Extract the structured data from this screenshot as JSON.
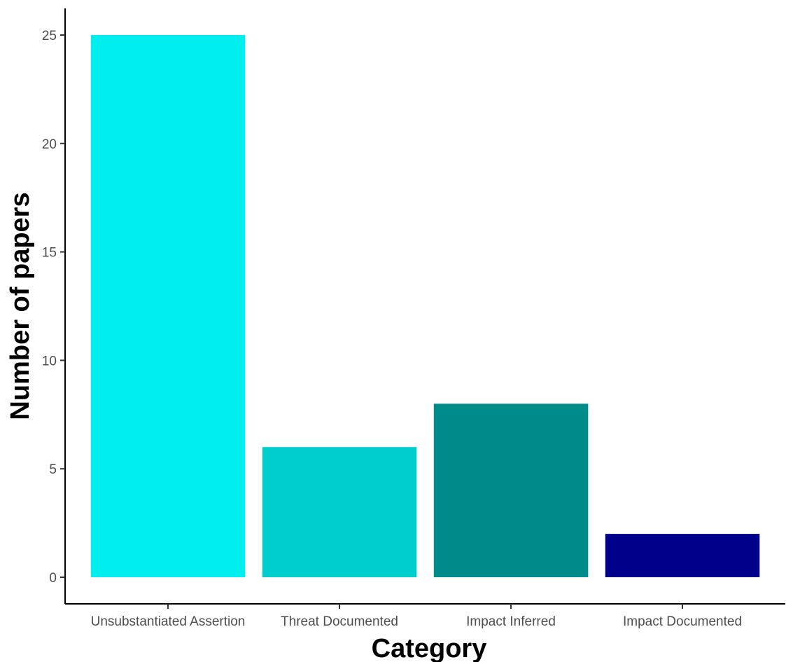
{
  "chart_data": {
    "type": "bar",
    "categories": [
      "Unsubstantiated Assertion",
      "Threat Documented",
      "Impact Inferred",
      "Impact Documented"
    ],
    "values": [
      25,
      6,
      8,
      2
    ],
    "colors": [
      "#00EEEE",
      "#00CDCD",
      "#008B8B",
      "#00008B"
    ],
    "xlabel": "Category",
    "ylabel": "Number of papers",
    "ylim": [
      0,
      25
    ],
    "yticks": [
      0,
      5,
      10,
      15,
      20,
      25
    ],
    "grid": false,
    "legend": "none"
  }
}
